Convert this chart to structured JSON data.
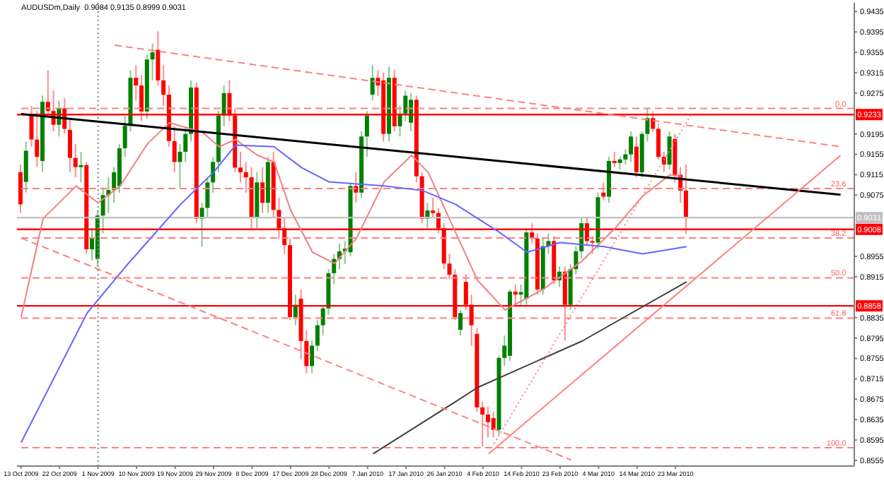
{
  "chart_data": {
    "type": "candlestick",
    "title": "AUDUSDm,Daily  0.9084 0.9135 0.8999 0.9031",
    "categories": [
      "13 Oct 2009",
      null,
      null,
      null,
      null,
      null,
      null,
      "22 Oct 2009",
      null,
      null,
      null,
      null,
      null,
      null,
      "1 Nov 2009",
      null,
      null,
      null,
      null,
      null,
      null,
      "10 Nov 2009",
      null,
      null,
      null,
      null,
      null,
      null,
      "19 Nov 2009",
      null,
      null,
      null,
      null,
      null,
      null,
      "29 Nov 2009",
      null,
      null,
      null,
      null,
      null,
      null,
      "8 Dec 2009",
      null,
      null,
      null,
      null,
      null,
      null,
      "17 Dec 2009",
      null,
      null,
      null,
      null,
      null,
      null,
      "28 Dec 2009",
      null,
      null,
      null,
      null,
      null,
      null,
      "7 Jan 2010",
      null,
      null,
      null,
      null,
      null,
      null,
      "17 Jan 2010",
      null,
      null,
      null,
      null,
      null,
      null,
      "26 Jan 2010",
      null,
      null,
      null,
      null,
      null,
      null,
      "4 Feb 2010",
      null,
      null,
      null,
      null,
      null,
      null,
      "14 Feb 2010",
      null,
      null,
      null,
      null,
      null,
      null,
      "23 Feb 2010",
      null,
      null,
      null,
      null,
      null,
      null,
      "4 Mar 2010",
      null,
      null,
      null,
      null,
      null,
      null,
      "14 Mar 2010",
      null,
      null,
      null,
      null,
      null,
      null,
      "23 Mar 2010",
      null,
      null,
      null,
      null,
      null,
      null,
      null,
      null,
      null,
      null,
      null,
      null,
      null,
      null,
      null,
      null,
      null,
      null,
      null,
      null,
      null,
      null,
      null,
      null,
      null,
      null,
      null,
      null,
      null,
      null,
      null,
      null
    ],
    "ohlc": [
      [
        0.912,
        0.9135,
        0.904,
        0.9057
      ],
      [
        0.9101,
        0.918,
        0.908,
        0.9162
      ],
      [
        0.9231,
        0.925,
        0.917,
        0.9184
      ],
      [
        0.9184,
        0.924,
        0.913,
        0.915
      ],
      [
        0.9142,
        0.927,
        0.912,
        0.9258
      ],
      [
        0.9258,
        0.9319,
        0.923,
        0.924
      ],
      [
        0.924,
        0.928,
        0.92,
        0.9213
      ],
      [
        0.9213,
        0.926,
        0.919,
        0.9245
      ],
      [
        0.9245,
        0.9265,
        0.9195,
        0.9205
      ],
      [
        0.9203,
        0.9225,
        0.912,
        0.9148
      ],
      [
        0.9148,
        0.9175,
        0.911,
        0.913
      ],
      [
        0.913,
        0.916,
        0.91,
        0.9134
      ],
      [
        0.9134,
        0.914,
        0.896,
        0.8969
      ],
      [
        0.8969,
        0.901,
        0.8947,
        0.899
      ],
      [
        0.895,
        0.9045,
        0.8935,
        0.9035
      ],
      [
        0.9035,
        0.909,
        0.9,
        0.9075
      ],
      [
        0.9075,
        0.911,
        0.904,
        0.9085
      ],
      [
        0.9085,
        0.913,
        0.906,
        0.912
      ],
      [
        0.9093,
        0.9175,
        0.908,
        0.9167
      ],
      [
        0.9167,
        0.923,
        0.915,
        0.9211
      ],
      [
        0.9211,
        0.932,
        0.92,
        0.9305
      ],
      [
        0.9305,
        0.933,
        0.926,
        0.929
      ],
      [
        0.929,
        0.931,
        0.922,
        0.9239
      ],
      [
        0.9239,
        0.935,
        0.9225,
        0.9341
      ],
      [
        0.9341,
        0.9372,
        0.93,
        0.9355
      ],
      [
        0.936,
        0.9396,
        0.929,
        0.93
      ],
      [
        0.93,
        0.933,
        0.925,
        0.9272
      ],
      [
        0.9272,
        0.929,
        0.917,
        0.9181
      ],
      [
        0.9181,
        0.921,
        0.912,
        0.914
      ],
      [
        0.914,
        0.9175,
        0.909,
        0.916
      ],
      [
        0.916,
        0.921,
        0.914,
        0.9195
      ],
      [
        0.9195,
        0.93,
        0.918,
        0.9286
      ],
      [
        0.9286,
        0.9295,
        0.902,
        0.9029
      ],
      [
        0.9029,
        0.906,
        0.8974,
        0.905
      ],
      [
        0.905,
        0.911,
        0.903,
        0.91
      ],
      [
        0.91,
        0.915,
        0.908,
        0.914
      ],
      [
        0.914,
        0.924,
        0.912,
        0.9231
      ],
      [
        0.9231,
        0.929,
        0.921,
        0.9275
      ],
      [
        0.9275,
        0.93,
        0.922,
        0.9231
      ],
      [
        0.9231,
        0.9245,
        0.912,
        0.9129
      ],
      [
        0.9129,
        0.916,
        0.91,
        0.912
      ],
      [
        0.912,
        0.914,
        0.908,
        0.911
      ],
      [
        0.911,
        0.913,
        0.901,
        0.903
      ],
      [
        0.903,
        0.912,
        0.901,
        0.91
      ],
      [
        0.91,
        0.913,
        0.904,
        0.906
      ],
      [
        0.906,
        0.915,
        0.904,
        0.914
      ],
      [
        0.914,
        0.916,
        0.903,
        0.9046
      ],
      [
        0.9046,
        0.907,
        0.899,
        0.901
      ],
      [
        0.901,
        0.903,
        0.896,
        0.8977
      ],
      [
        0.8977,
        0.899,
        0.883,
        0.8836
      ],
      [
        0.8836,
        0.888,
        0.882,
        0.886
      ],
      [
        0.8872,
        0.889,
        0.8753,
        0.8789
      ],
      [
        0.8789,
        0.881,
        0.8726,
        0.874
      ],
      [
        0.874,
        0.879,
        0.8726,
        0.878
      ],
      [
        0.878,
        0.883,
        0.877,
        0.882
      ],
      [
        0.882,
        0.886,
        0.88,
        0.8853
      ],
      [
        0.8853,
        0.893,
        0.884,
        0.8922
      ],
      [
        0.8922,
        0.896,
        0.89,
        0.895
      ],
      [
        0.895,
        0.898,
        0.893,
        0.8965
      ],
      [
        0.8965,
        0.8985,
        0.894,
        0.897
      ],
      [
        0.8963,
        0.91,
        0.8955,
        0.9093
      ],
      [
        0.9093,
        0.912,
        0.906,
        0.908
      ],
      [
        0.908,
        0.92,
        0.907,
        0.919
      ],
      [
        0.919,
        0.924,
        0.915,
        0.9231
      ],
      [
        0.9272,
        0.933,
        0.926,
        0.9305
      ],
      [
        0.9305,
        0.932,
        0.927,
        0.929
      ],
      [
        0.93,
        0.9315,
        0.918,
        0.9195
      ],
      [
        0.9195,
        0.9327,
        0.918,
        0.9305
      ],
      [
        0.9305,
        0.932,
        0.92,
        0.921
      ],
      [
        0.921,
        0.925,
        0.919,
        0.9235
      ],
      [
        0.9235,
        0.928,
        0.922,
        0.927
      ],
      [
        0.9217,
        0.9275,
        0.92,
        0.9262
      ],
      [
        0.9262,
        0.927,
        0.91,
        0.9112
      ],
      [
        0.9112,
        0.912,
        0.902,
        0.9029
      ],
      [
        0.9029,
        0.906,
        0.901,
        0.9045
      ],
      [
        0.9045,
        0.907,
        0.903,
        0.904
      ],
      [
        0.904,
        0.905,
        0.9,
        0.901
      ],
      [
        0.901,
        0.902,
        0.893,
        0.8941
      ],
      [
        0.8941,
        0.896,
        0.891,
        0.8919
      ],
      [
        0.8919,
        0.893,
        0.883,
        0.8836
      ],
      [
        0.8811,
        0.885,
        0.88,
        0.8844
      ],
      [
        0.8905,
        0.892,
        0.885,
        0.886
      ],
      [
        0.886,
        0.888,
        0.878,
        0.882
      ],
      [
        0.8803,
        0.8815,
        0.865,
        0.8659
      ],
      [
        0.8659,
        0.867,
        0.8582,
        0.8645
      ],
      [
        0.8645,
        0.866,
        0.86,
        0.863
      ],
      [
        0.8638,
        0.865,
        0.86,
        0.8615
      ],
      [
        0.8615,
        0.876,
        0.8605,
        0.8756
      ],
      [
        0.8756,
        0.88,
        0.874,
        0.878
      ],
      [
        0.876,
        0.889,
        0.875,
        0.8886
      ],
      [
        0.8886,
        0.89,
        0.886,
        0.888
      ],
      [
        0.888,
        0.89,
        0.886,
        0.8885
      ],
      [
        0.8872,
        0.901,
        0.886,
        0.9002
      ],
      [
        0.9002,
        0.902,
        0.898,
        0.899
      ],
      [
        0.899,
        0.9,
        0.888,
        0.889
      ],
      [
        0.889,
        0.899,
        0.888,
        0.8975
      ],
      [
        0.8975,
        0.9,
        0.896,
        0.8985
      ],
      [
        0.8985,
        0.8995,
        0.89,
        0.8908
      ],
      [
        0.8908,
        0.8935,
        0.8895,
        0.8925
      ],
      [
        0.8925,
        0.8935,
        0.879,
        0.886
      ],
      [
        0.886,
        0.894,
        0.885,
        0.893
      ],
      [
        0.893,
        0.8975,
        0.892,
        0.8965
      ],
      [
        0.8965,
        0.903,
        0.895,
        0.902
      ],
      [
        0.902,
        0.903,
        0.8975,
        0.8985
      ],
      [
        0.8985,
        0.8995,
        0.896,
        0.8982
      ],
      [
        0.8982,
        0.908,
        0.897,
        0.9071
      ],
      [
        0.908,
        0.91,
        0.9065,
        0.9072
      ],
      [
        0.9072,
        0.915,
        0.906,
        0.9142
      ],
      [
        0.9142,
        0.916,
        0.913,
        0.9138
      ],
      [
        0.9138,
        0.915,
        0.9125,
        0.9145
      ],
      [
        0.9145,
        0.9165,
        0.9135,
        0.9155
      ],
      [
        0.9155,
        0.92,
        0.914,
        0.919
      ],
      [
        0.917,
        0.919,
        0.911,
        0.912
      ],
      [
        0.912,
        0.92,
        0.911,
        0.9195
      ],
      [
        0.9195,
        0.9245,
        0.918,
        0.9226
      ],
      [
        0.9226,
        0.924,
        0.92,
        0.9205
      ],
      [
        0.9205,
        0.9215,
        0.9145,
        0.915
      ],
      [
        0.915,
        0.916,
        0.912,
        0.9135
      ],
      [
        0.9135,
        0.92,
        0.9125,
        0.919
      ],
      [
        0.9185,
        0.9195,
        0.91,
        0.9115
      ],
      [
        0.9115,
        0.913,
        0.906,
        0.9084
      ],
      [
        0.9084,
        0.9135,
        0.8999,
        0.9031
      ],
      null,
      null,
      null,
      null,
      null,
      null,
      null,
      null,
      null,
      null,
      null,
      null,
      null,
      null,
      null,
      null,
      null,
      null,
      null,
      null,
      null,
      null,
      null,
      null,
      null,
      null,
      null,
      null,
      null,
      null
    ],
    "colors": [
      "#ff0000",
      "#008000",
      "#ff0000",
      "#ff0000",
      "#008000",
      "#ff0000",
      "#ff0000",
      "#008000",
      "#ff0000",
      "#ff0000",
      "#ff0000",
      "#008000",
      "#ff0000",
      "#008000",
      "#008000",
      "#008000",
      "#008000",
      "#008000",
      "#008000",
      "#008000",
      "#008000",
      "#ff0000",
      "#ff0000",
      "#008000",
      "#008000",
      "#ff0000",
      "#ff0000",
      "#ff0000",
      "#ff0000",
      "#008000",
      "#008000",
      "#008000",
      "#ff0000",
      "#008000",
      "#008000",
      "#008000",
      "#008000",
      "#008000",
      "#ff0000",
      "#ff0000",
      "#ff0000",
      "#ff0000",
      "#ff0000",
      "#008000",
      "#ff0000",
      "#008000",
      "#ff0000",
      "#ff0000",
      "#ff0000",
      "#ff0000",
      "#008000",
      "#ff0000",
      "#ff0000",
      "#008000",
      "#008000",
      "#008000",
      "#008000",
      "#008000",
      "#008000",
      "#008000",
      "#008000",
      "#ff0000",
      "#008000",
      "#008000",
      "#008000",
      "#ff0000",
      "#ff0000",
      "#008000",
      "#ff0000",
      "#008000",
      "#008000",
      "#008000",
      "#ff0000",
      "#ff0000",
      "#008000",
      "#ff0000",
      "#ff0000",
      "#ff0000",
      "#ff0000",
      "#ff0000",
      "#008000",
      "#ff0000",
      "#ff0000",
      "#ff0000",
      "#ff0000",
      "#ff0000",
      "#ff0000",
      "#008000",
      "#008000",
      "#008000",
      "#ff0000",
      "#008000",
      "#008000",
      "#ff0000",
      "#ff0000",
      "#008000",
      "#008000",
      "#ff0000",
      "#008000",
      "#ff0000",
      "#008000",
      "#008000",
      "#008000",
      "#ff0000",
      "#ff0000",
      "#008000",
      "#ff0000",
      "#008000",
      "#ff0000",
      "#008000",
      "#008000",
      "#008000",
      "#ff0000",
      "#008000",
      "#008000",
      "#ff0000",
      "#ff0000",
      "#ff0000",
      "#008000",
      "#ff0000",
      "#ff0000",
      "#ff0000",
      null,
      null,
      null,
      null,
      null,
      null,
      null,
      null,
      null,
      null,
      null,
      null,
      null,
      null,
      null,
      null,
      null,
      null,
      null,
      null,
      null,
      null,
      null,
      null,
      null,
      null,
      null,
      null,
      null,
      null
    ],
    "series": [
      {
        "type": "line",
        "color": "#f08080",
        "line_style": "solid",
        "values": [
          0.8836,
          null,
          null,
          null,
          0.9029,
          null,
          null,
          null,
          null,
          null,
          0.9093,
          null,
          null,
          null,
          0.906,
          null,
          null,
          null,
          0.9093,
          null,
          null,
          null,
          null,
          0.9176,
          null,
          null,
          null,
          0.9217,
          null,
          null,
          null,
          null,
          null,
          0.9198,
          null,
          null,
          0.917,
          null,
          null,
          0.9184,
          null,
          null,
          null,
          0.9153,
          null,
          null,
          0.914,
          null,
          null,
          0.9046,
          null,
          null,
          null,
          0.8963,
          null,
          null,
          null,
          0.8941,
          null,
          null,
          null,
          0.8991,
          null,
          null,
          null,
          null,
          0.9101,
          null,
          null,
          null,
          null,
          0.9153,
          null,
          null,
          0.912,
          null,
          null,
          null,
          null,
          0.9002,
          null,
          null,
          null,
          0.8908,
          null,
          null,
          null,
          null,
          0.885,
          null,
          null,
          null,
          null,
          null,
          null,
          0.8891,
          null,
          null,
          null,
          null,
          null,
          null,
          0.8946,
          null,
          null,
          null,
          null,
          null,
          0.901,
          null,
          null,
          null,
          null,
          0.9073,
          null,
          null,
          null,
          null,
          0.9115,
          null,
          0.9112,
          null,
          null,
          null,
          null,
          null,
          null,
          null,
          null,
          null,
          null,
          null,
          null,
          null,
          null,
          null,
          null,
          null,
          null,
          null,
          null,
          null,
          null,
          null,
          null,
          null,
          null,
          null,
          null,
          null,
          null,
          null
        ]
      },
      {
        "type": "line",
        "color": "#6666ff",
        "line_style": "solid",
        "values": [
          0.859,
          null,
          null,
          null,
          null,
          null,
          null,
          null,
          null,
          null,
          null,
          null,
          0.8844,
          null,
          null,
          null,
          null,
          null,
          null,
          0.8935,
          null,
          null,
          null,
          null,
          null,
          null,
          null,
          null,
          null,
          0.9057,
          null,
          null,
          null,
          null,
          null,
          0.912,
          null,
          null,
          null,
          0.9173,
          null,
          null,
          null,
          null,
          null,
          null,
          0.917,
          null,
          null,
          null,
          null,
          0.9129,
          null,
          null,
          null,
          null,
          0.9101,
          null,
          null,
          null,
          null,
          null,
          null,
          null,
          null,
          null,
          0.9093,
          null,
          null,
          null,
          null,
          null,
          null,
          0.9084,
          null,
          null,
          null,
          null,
          null,
          0.9057,
          null,
          null,
          null,
          null,
          null,
          null,
          null,
          0.9002,
          null,
          null,
          null,
          null,
          0.8963,
          null,
          null,
          null,
          null,
          null,
          0.8982,
          null,
          null,
          null,
          null,
          null,
          null,
          null,
          0.8974,
          null,
          null,
          null,
          null,
          null,
          null,
          0.896,
          null,
          null,
          null,
          null,
          null,
          null,
          null,
          0.8974,
          null,
          null,
          null,
          null,
          null,
          null,
          null,
          null,
          null,
          null,
          null,
          null,
          null,
          null,
          null,
          null,
          null,
          null,
          null,
          null,
          null,
          null,
          null,
          null,
          null,
          null,
          null,
          null,
          null,
          null
        ]
      },
      {
        "type": "line",
        "color": "#404040",
        "line_style": "solid",
        "values": [
          null,
          null,
          null,
          null,
          null,
          null,
          null,
          null,
          null,
          null,
          null,
          null,
          null,
          null,
          null,
          null,
          null,
          null,
          null,
          null,
          null,
          null,
          null,
          null,
          null,
          null,
          null,
          null,
          null,
          null,
          null,
          null,
          null,
          null,
          null,
          null,
          null,
          null,
          null,
          null,
          null,
          null,
          null,
          null,
          null,
          null,
          null,
          null,
          null,
          null,
          null,
          null,
          null,
          null,
          null,
          null,
          null,
          null,
          null,
          null,
          null,
          null,
          null,
          null,
          0.8568,
          null,
          null,
          null,
          null,
          null,
          null,
          null,
          null,
          null,
          null,
          null,
          null,
          null,
          null,
          0.867,
          null,
          null,
          null,
          0.8698,
          null,
          null,
          null,
          null,
          null,
          null,
          null,
          null,
          null,
          null,
          null,
          null,
          null,
          null,
          null,
          null,
          null,
          null,
          0.8789,
          null,
          null,
          null,
          null,
          null,
          null,
          null,
          null,
          null,
          null,
          null,
          null,
          null,
          null,
          null,
          null,
          null,
          null,
          0.8905,
          null,
          null,
          null,
          null,
          null,
          null,
          null,
          null,
          null,
          null,
          null,
          null,
          null,
          null,
          null,
          null,
          null,
          null,
          null,
          null,
          null,
          null,
          null,
          null,
          null,
          null,
          null,
          null,
          null,
          null
        ]
      },
      {
        "type": "line",
        "color": "#ff8080",
        "line_style": "dashed",
        "values": [
          null,
          null,
          null,
          null,
          null,
          null,
          null,
          null,
          null,
          null,
          null,
          null,
          null,
          null,
          null,
          null,
          null,
          0.9369,
          null,
          null,
          null,
          null,
          null,
          null,
          null,
          null,
          null,
          null,
          null,
          null,
          null,
          null,
          null,
          null,
          null,
          null,
          null,
          null,
          null,
          null,
          null,
          null,
          null,
          null,
          null,
          null,
          null,
          null,
          null,
          null,
          null,
          null,
          null,
          null,
          null,
          null,
          null,
          null,
          null,
          null,
          null,
          null,
          null,
          null,
          null,
          null,
          null,
          null,
          null,
          null,
          null,
          null,
          null,
          null,
          null,
          null,
          null,
          null,
          null,
          null,
          null,
          null,
          null,
          null,
          null,
          null,
          null,
          null,
          null,
          null,
          null,
          null,
          null,
          null,
          null,
          null,
          null,
          null,
          null,
          null,
          null,
          null,
          null,
          null,
          null,
          null,
          null,
          null,
          null,
          null,
          null,
          null,
          null,
          null,
          null,
          null,
          null,
          null,
          null,
          null,
          null,
          null,
          null,
          null,
          null,
          null,
          null,
          null,
          null,
          null,
          null,
          null,
          null,
          null,
          null,
          null,
          null,
          null,
          null,
          null,
          null,
          null,
          null,
          null,
          null,
          null,
          null,
          null,
          null,
          0.917,
          null,
          null
        ]
      },
      {
        "type": "line",
        "color": "#ff8080",
        "line_style": "dashed",
        "values": [
          0.8991,
          null,
          null,
          null,
          null,
          null,
          null,
          null,
          null,
          null,
          null,
          null,
          null,
          null,
          null,
          null,
          null,
          null,
          null,
          null,
          null,
          null,
          null,
          null,
          null,
          null,
          null,
          null,
          null,
          null,
          null,
          null,
          null,
          null,
          null,
          null,
          null,
          null,
          null,
          null,
          null,
          null,
          null,
          null,
          null,
          null,
          null,
          null,
          null,
          null,
          null,
          null,
          null,
          null,
          null,
          null,
          null,
          null,
          null,
          null,
          null,
          null,
          null,
          null,
          null,
          null,
          null,
          null,
          null,
          null,
          null,
          null,
          null,
          null,
          null,
          null,
          null,
          null,
          null,
          null,
          null,
          null,
          null,
          null,
          null,
          null,
          null,
          null,
          null,
          null,
          null,
          null,
          null,
          null,
          null,
          null,
          null,
          null,
          null,
          null,
          0.8556,
          null,
          null,
          null,
          null,
          null,
          null,
          null,
          null,
          null,
          null,
          null,
          null,
          null,
          null,
          null,
          null,
          null,
          null,
          null,
          null,
          null,
          null,
          null,
          null,
          null,
          null,
          null,
          null,
          null,
          null,
          null,
          null,
          null,
          null,
          null,
          null,
          null,
          null,
          null,
          null,
          null,
          null,
          null,
          null,
          null,
          null,
          null,
          null,
          null,
          null,
          null
        ]
      },
      {
        "type": "line",
        "color": "#000000",
        "line_style": "solid",
        "values": [
          0.9234,
          null,
          null,
          null,
          null,
          null,
          null,
          null,
          null,
          null,
          null,
          null,
          null,
          null,
          null,
          null,
          null,
          null,
          null,
          null,
          null,
          null,
          null,
          null,
          null,
          null,
          null,
          null,
          null,
          null,
          null,
          null,
          null,
          null,
          null,
          null,
          null,
          null,
          null,
          null,
          null,
          null,
          null,
          null,
          null,
          null,
          null,
          null,
          null,
          null,
          null,
          null,
          null,
          null,
          null,
          null,
          null,
          null,
          null,
          null,
          null,
          null,
          null,
          null,
          null,
          null,
          null,
          null,
          null,
          null,
          null,
          null,
          null,
          null,
          null,
          null,
          null,
          null,
          null,
          null,
          null,
          null,
          null,
          null,
          null,
          null,
          null,
          null,
          null,
          null,
          null,
          null,
          null,
          null,
          null,
          null,
          null,
          null,
          null,
          null,
          null,
          null,
          null,
          null,
          null,
          null,
          null,
          null,
          null,
          null,
          null,
          null,
          null,
          null,
          null,
          null,
          null,
          null,
          null,
          null,
          null,
          null,
          null,
          null,
          null,
          null,
          null,
          null,
          null,
          null,
          null,
          null,
          null,
          null,
          null,
          null,
          null,
          null,
          null,
          null,
          null,
          null,
          null,
          null,
          null,
          null,
          null,
          null,
          null,
          0.9076,
          null,
          null
        ]
      },
      {
        "type": "line",
        "color": "#ff8080",
        "line_style": "solid",
        "values": [
          null,
          null,
          null,
          null,
          null,
          null,
          null,
          null,
          null,
          null,
          null,
          null,
          null,
          null,
          null,
          null,
          null,
          null,
          null,
          null,
          null,
          null,
          null,
          null,
          null,
          null,
          null,
          null,
          null,
          null,
          null,
          null,
          null,
          null,
          null,
          null,
          null,
          null,
          null,
          null,
          null,
          null,
          null,
          null,
          null,
          null,
          null,
          null,
          null,
          null,
          null,
          null,
          null,
          null,
          null,
          null,
          null,
          null,
          null,
          null,
          null,
          null,
          null,
          null,
          null,
          null,
          null,
          null,
          null,
          null,
          null,
          null,
          null,
          null,
          null,
          null,
          null,
          null,
          null,
          null,
          null,
          null,
          null,
          null,
          null,
          0.8568,
          null,
          null,
          null,
          null,
          null,
          null,
          null,
          null,
          null,
          null,
          null,
          null,
          null,
          null,
          null,
          null,
          null,
          null,
          null,
          null,
          null,
          null,
          null,
          null,
          null,
          null,
          null,
          null,
          null,
          null,
          null,
          null,
          null,
          null,
          null,
          null,
          null,
          null,
          null,
          null,
          null,
          null,
          null,
          null,
          null,
          null,
          null,
          null,
          null,
          null,
          null,
          null,
          null,
          null,
          null,
          null,
          null,
          null,
          null,
          null,
          null,
          null,
          null,
          0.9153,
          null,
          null
        ]
      },
      {
        "type": "line",
        "color": "#ff8080",
        "line_style": "dotted",
        "values": [
          null,
          null,
          null,
          null,
          null,
          null,
          null,
          null,
          null,
          null,
          null,
          null,
          null,
          null,
          null,
          null,
          null,
          null,
          null,
          null,
          null,
          null,
          null,
          null,
          null,
          null,
          null,
          null,
          null,
          null,
          null,
          null,
          null,
          null,
          null,
          null,
          null,
          null,
          null,
          null,
          null,
          null,
          null,
          null,
          null,
          null,
          null,
          null,
          null,
          null,
          null,
          null,
          null,
          null,
          null,
          null,
          null,
          null,
          null,
          null,
          null,
          null,
          null,
          null,
          null,
          null,
          null,
          null,
          null,
          null,
          null,
          null,
          null,
          null,
          null,
          null,
          null,
          null,
          null,
          null,
          null,
          null,
          null,
          null,
          null,
          null,
          0.8588,
          null,
          null,
          null,
          null,
          null,
          null,
          null,
          null,
          null,
          null,
          null,
          null,
          null,
          null,
          null,
          null,
          null,
          null,
          null,
          null,
          null,
          null,
          null,
          null,
          null,
          null,
          null,
          null,
          null,
          null,
          null,
          null,
          null,
          null,
          null,
          0.9236,
          null,
          null,
          null,
          null,
          null,
          null,
          null,
          null,
          null,
          null,
          null,
          null,
          null,
          null,
          null,
          null,
          null,
          null,
          null,
          null,
          null,
          null,
          null,
          null,
          null,
          null,
          null,
          null,
          null
        ]
      }
    ],
    "ref_lines": [
      {
        "axis": "y",
        "value": 0.9233,
        "label": "0.9233",
        "color": "#ff0000",
        "line_style": "solid"
      },
      {
        "axis": "y",
        "value": 0.9008,
        "label": "0.9008",
        "color": "#ff0000",
        "line_style": "solid"
      },
      {
        "axis": "y",
        "value": 0.8858,
        "label": "0.8858",
        "color": "#ff0000",
        "line_style": "solid"
      },
      {
        "axis": "y",
        "value": 0.9031,
        "label": "0.9031",
        "color": "#c0c0c0",
        "line_style": "solid"
      },
      {
        "axis": "y",
        "value": 0.9245,
        "color": "#ff8080",
        "line_style": "dashed"
      },
      {
        "axis": "y",
        "value": 0.9088,
        "color": "#ff8080",
        "line_style": "dashed"
      },
      {
        "axis": "y",
        "value": 0.8991,
        "color": "#ff8080",
        "line_style": "dashed"
      },
      {
        "axis": "y",
        "value": 0.8913,
        "color": "#ff8080",
        "line_style": "dashed"
      },
      {
        "axis": "y",
        "value": 0.8834,
        "color": "#ff8080",
        "line_style": "dashed"
      },
      {
        "axis": "y",
        "value": 0.858,
        "color": "#ff8080",
        "line_style": "dashed"
      },
      {
        "axis": "x",
        "value": "1 Nov 2009",
        "color": "#808080",
        "line_style": "dotted"
      }
    ],
    "annotations": [
      {
        "text": "0.0",
        "y": 0.9245
      },
      {
        "text": "23.6",
        "y": 0.9088
      },
      {
        "text": "38.2",
        "y": 0.8991
      },
      {
        "text": "50.0",
        "y": 0.8913
      },
      {
        "text": "61.8",
        "y": 0.8834
      },
      {
        "text": "100.0",
        "y": 0.858
      }
    ],
    "ylim": [
      0.8544,
      0.9452
    ],
    "yticks": [
      0.9435,
      0.9395,
      0.9355,
      0.9315,
      0.9275,
      0.9195,
      0.9155,
      0.9115,
      0.9075,
      0.8955,
      0.8915,
      0.8835,
      0.8795,
      0.8755,
      0.8715,
      0.8675,
      0.8635,
      0.8595,
      0.8555
    ],
    "marker": "none"
  }
}
